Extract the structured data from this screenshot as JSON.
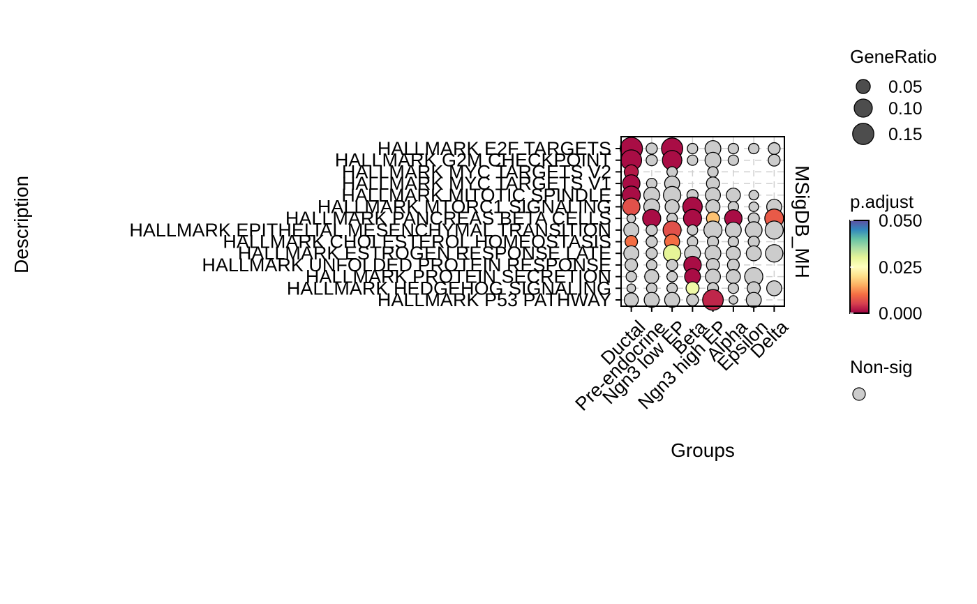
{
  "chart_data": {
    "type": "scatter",
    "subtype": "dotplot",
    "ylabel": "Description",
    "xlabel": "Groups",
    "strip_label": "MSigDB_MH",
    "x_categories": [
      "Ductal",
      "Pre-endocrine",
      "Ngn3 low EP",
      "Beta",
      "Ngn3 high EP",
      "Alpha",
      "Epsilon",
      "Delta"
    ],
    "y_categories": [
      "HALLMARK E2F TARGETS",
      "HALLMARK G2M CHECKPOINT",
      "HALLMARK MYC TARGETS V2",
      "HALLMARK MYC TARGETS V1",
      "HALLMARK MITOTIC SPINDLE",
      "HALLMARK MTORC1 SIGNALING",
      "HALLMARK PANCREAS BETA CELLS",
      "HALLMARK EPITHELIAL MESENCHYMAL TRANSITION",
      "HALLMARK CHOLESTEROL HOMEOSTASIS",
      "HALLMARK ESTROGEN RESPONSE LATE",
      "HALLMARK UNFOLDED PROTEIN RESPONSE",
      "HALLMARK PROTEIN SECRETION",
      "HALLMARK HEDGEHOG SIGNALING",
      "HALLMARK P53 PATHWAY"
    ],
    "points": [
      {
        "group": "Ductal",
        "term": "HALLMARK E2F TARGETS",
        "gene_ratio": 0.17,
        "p_adjust": 0.001,
        "sig": true
      },
      {
        "group": "Ductal",
        "term": "HALLMARK G2M CHECKPOINT",
        "gene_ratio": 0.14,
        "p_adjust": 0.001,
        "sig": true
      },
      {
        "group": "Ductal",
        "term": "HALLMARK MYC TARGETS V2",
        "gene_ratio": 0.05,
        "p_adjust": 0.002,
        "sig": true
      },
      {
        "group": "Ductal",
        "term": "HALLMARK MYC TARGETS V1",
        "gene_ratio": 0.09,
        "p_adjust": 0.001,
        "sig": true
      },
      {
        "group": "Ductal",
        "term": "HALLMARK MITOTIC SPINDLE",
        "gene_ratio": 0.1,
        "p_adjust": 0.001,
        "sig": true
      },
      {
        "group": "Ductal",
        "term": "HALLMARK MTORC1 SIGNALING",
        "gene_ratio": 0.09,
        "p_adjust": 0.007,
        "sig": true
      },
      {
        "group": "Ductal",
        "term": "HALLMARK PANCREAS BETA CELLS",
        "gene_ratio": 0.01,
        "p_adjust": null,
        "sig": false
      },
      {
        "group": "Ductal",
        "term": "HALLMARK EPITHELIAL MESENCHYMAL TRANSITION",
        "gene_ratio": 0.06,
        "p_adjust": null,
        "sig": false
      },
      {
        "group": "Ductal",
        "term": "HALLMARK CHOLESTEROL HOMEOSTASIS",
        "gene_ratio": 0.035,
        "p_adjust": 0.01,
        "sig": true
      },
      {
        "group": "Ductal",
        "term": "HALLMARK ESTROGEN RESPONSE LATE",
        "gene_ratio": 0.06,
        "p_adjust": null,
        "sig": false
      },
      {
        "group": "Ductal",
        "term": "HALLMARK UNFOLDED PROTEIN RESPONSE",
        "gene_ratio": 0.035,
        "p_adjust": null,
        "sig": false
      },
      {
        "group": "Ductal",
        "term": "HALLMARK PROTEIN SECRETION",
        "gene_ratio": 0.02,
        "p_adjust": null,
        "sig": false
      },
      {
        "group": "Ductal",
        "term": "HALLMARK HEDGEHOG SIGNALING",
        "gene_ratio": 0.01,
        "p_adjust": null,
        "sig": false
      },
      {
        "group": "Ductal",
        "term": "HALLMARK P53 PATHWAY",
        "gene_ratio": 0.05,
        "p_adjust": null,
        "sig": false
      },
      {
        "group": "Pre-endocrine",
        "term": "HALLMARK E2F TARGETS",
        "gene_ratio": 0.025,
        "p_adjust": null,
        "sig": false
      },
      {
        "group": "Pre-endocrine",
        "term": "HALLMARK G2M CHECKPOINT",
        "gene_ratio": 0.025,
        "p_adjust": null,
        "sig": false
      },
      {
        "group": "Pre-endocrine",
        "term": "HALLMARK MYC TARGETS V1",
        "gene_ratio": 0.02,
        "p_adjust": null,
        "sig": false
      },
      {
        "group": "Pre-endocrine",
        "term": "HALLMARK MITOTIC SPINDLE",
        "gene_ratio": 0.07,
        "p_adjust": null,
        "sig": false
      },
      {
        "group": "Pre-endocrine",
        "term": "HALLMARK MTORC1 SIGNALING",
        "gene_ratio": 0.07,
        "p_adjust": null,
        "sig": false
      },
      {
        "group": "Pre-endocrine",
        "term": "HALLMARK PANCREAS BETA CELLS",
        "gene_ratio": 0.1,
        "p_adjust": 0.001,
        "sig": true
      },
      {
        "group": "Pre-endocrine",
        "term": "HALLMARK EPITHELIAL MESENCHYMAL TRANSITION",
        "gene_ratio": 0.025,
        "p_adjust": null,
        "sig": false
      },
      {
        "group": "Pre-endocrine",
        "term": "HALLMARK CHOLESTEROL HOMEOSTASIS",
        "gene_ratio": 0.025,
        "p_adjust": null,
        "sig": false
      },
      {
        "group": "Pre-endocrine",
        "term": "HALLMARK ESTROGEN RESPONSE LATE",
        "gene_ratio": 0.025,
        "p_adjust": null,
        "sig": false
      },
      {
        "group": "Pre-endocrine",
        "term": "HALLMARK UNFOLDED PROTEIN RESPONSE",
        "gene_ratio": 0.02,
        "p_adjust": null,
        "sig": false
      },
      {
        "group": "Pre-endocrine",
        "term": "HALLMARK PROTEIN SECRETION",
        "gene_ratio": 0.05,
        "p_adjust": null,
        "sig": false
      },
      {
        "group": "Pre-endocrine",
        "term": "HALLMARK HEDGEHOG SIGNALING",
        "gene_ratio": 0.02,
        "p_adjust": null,
        "sig": false
      },
      {
        "group": "Pre-endocrine",
        "term": "HALLMARK P53 PATHWAY",
        "gene_ratio": 0.06,
        "p_adjust": null,
        "sig": false
      },
      {
        "group": "Ngn3 low EP",
        "term": "HALLMARK E2F TARGETS",
        "gene_ratio": 0.15,
        "p_adjust": 0.001,
        "sig": true
      },
      {
        "group": "Ngn3 low EP",
        "term": "HALLMARK G2M CHECKPOINT",
        "gene_ratio": 0.12,
        "p_adjust": 0.001,
        "sig": true
      },
      {
        "group": "Ngn3 low EP",
        "term": "HALLMARK MYC TARGETS V2",
        "gene_ratio": 0.02,
        "p_adjust": null,
        "sig": false
      },
      {
        "group": "Ngn3 low EP",
        "term": "HALLMARK MYC TARGETS V1",
        "gene_ratio": 0.06,
        "p_adjust": null,
        "sig": false
      },
      {
        "group": "Ngn3 low EP",
        "term": "HALLMARK MITOTIC SPINDLE",
        "gene_ratio": 0.09,
        "p_adjust": null,
        "sig": false
      },
      {
        "group": "Ngn3 low EP",
        "term": "HALLMARK MTORC1 SIGNALING",
        "gene_ratio": 0.05,
        "p_adjust": null,
        "sig": false
      },
      {
        "group": "Ngn3 low EP",
        "term": "HALLMARK PANCREAS BETA CELLS",
        "gene_ratio": 0.02,
        "p_adjust": null,
        "sig": false
      },
      {
        "group": "Ngn3 low EP",
        "term": "HALLMARK EPITHELIAL MESENCHYMAL TRANSITION",
        "gene_ratio": 0.1,
        "p_adjust": 0.007,
        "sig": true
      },
      {
        "group": "Ngn3 low EP",
        "term": "HALLMARK CHOLESTEROL HOMEOSTASIS",
        "gene_ratio": 0.06,
        "p_adjust": 0.01,
        "sig": true
      },
      {
        "group": "Ngn3 low EP",
        "term": "HALLMARK ESTROGEN RESPONSE LATE",
        "gene_ratio": 0.09,
        "p_adjust": 0.03,
        "sig": true
      },
      {
        "group": "Ngn3 low EP",
        "term": "HALLMARK UNFOLDED PROTEIN RESPONSE",
        "gene_ratio": 0.025,
        "p_adjust": null,
        "sig": false
      },
      {
        "group": "Ngn3 low EP",
        "term": "HALLMARK PROTEIN SECRETION",
        "gene_ratio": 0.02,
        "p_adjust": null,
        "sig": false
      },
      {
        "group": "Ngn3 low EP",
        "term": "HALLMARK HEDGEHOG SIGNALING",
        "gene_ratio": 0.02,
        "p_adjust": null,
        "sig": false
      },
      {
        "group": "Ngn3 low EP",
        "term": "HALLMARK P53 PATHWAY",
        "gene_ratio": 0.06,
        "p_adjust": null,
        "sig": false
      },
      {
        "group": "Beta",
        "term": "HALLMARK E2F TARGETS",
        "gene_ratio": 0.02,
        "p_adjust": null,
        "sig": false
      },
      {
        "group": "Beta",
        "term": "HALLMARK G2M CHECKPOINT",
        "gene_ratio": 0.02,
        "p_adjust": null,
        "sig": false
      },
      {
        "group": "Beta",
        "term": "HALLMARK MITOTIC SPINDLE",
        "gene_ratio": 0.025,
        "p_adjust": null,
        "sig": false
      },
      {
        "group": "Beta",
        "term": "HALLMARK MTORC1 SIGNALING",
        "gene_ratio": 0.12,
        "p_adjust": 0.001,
        "sig": true
      },
      {
        "group": "Beta",
        "term": "HALLMARK PANCREAS BETA CELLS",
        "gene_ratio": 0.1,
        "p_adjust": 0.001,
        "sig": true
      },
      {
        "group": "Beta",
        "term": "HALLMARK EPITHELIAL MESENCHYMAL TRANSITION",
        "gene_ratio": 0.02,
        "p_adjust": null,
        "sig": false
      },
      {
        "group": "Beta",
        "term": "HALLMARK CHOLESTEROL HOMEOSTASIS",
        "gene_ratio": 0.02,
        "p_adjust": null,
        "sig": false
      },
      {
        "group": "Beta",
        "term": "HALLMARK ESTROGEN RESPONSE LATE",
        "gene_ratio": 0.07,
        "p_adjust": null,
        "sig": false
      },
      {
        "group": "Beta",
        "term": "HALLMARK UNFOLDED PROTEIN RESPONSE",
        "gene_ratio": 0.09,
        "p_adjust": 0.001,
        "sig": true
      },
      {
        "group": "Beta",
        "term": "HALLMARK PROTEIN SECRETION",
        "gene_ratio": 0.07,
        "p_adjust": 0.001,
        "sig": true
      },
      {
        "group": "Beta",
        "term": "HALLMARK HEDGEHOG SIGNALING",
        "gene_ratio": 0.04,
        "p_adjust": 0.028,
        "sig": true
      },
      {
        "group": "Beta",
        "term": "HALLMARK P53 PATHWAY",
        "gene_ratio": 0.03,
        "p_adjust": null,
        "sig": false
      },
      {
        "group": "Ngn3 high EP",
        "term": "HALLMARK E2F TARGETS",
        "gene_ratio": 0.07,
        "p_adjust": null,
        "sig": false
      },
      {
        "group": "Ngn3 high EP",
        "term": "HALLMARK G2M CHECKPOINT",
        "gene_ratio": 0.07,
        "p_adjust": null,
        "sig": false
      },
      {
        "group": "Ngn3 high EP",
        "term": "HALLMARK MYC TARGETS V2",
        "gene_ratio": 0.02,
        "p_adjust": null,
        "sig": false
      },
      {
        "group": "Ngn3 high EP",
        "term": "HALLMARK MYC TARGETS V1",
        "gene_ratio": 0.04,
        "p_adjust": null,
        "sig": false
      },
      {
        "group": "Ngn3 high EP",
        "term": "HALLMARK MITOTIC SPINDLE",
        "gene_ratio": 0.06,
        "p_adjust": null,
        "sig": false
      },
      {
        "group": "Ngn3 high EP",
        "term": "HALLMARK MTORC1 SIGNALING",
        "gene_ratio": 0.05,
        "p_adjust": null,
        "sig": false
      },
      {
        "group": "Ngn3 high EP",
        "term": "HALLMARK PANCREAS BETA CELLS",
        "gene_ratio": 0.04,
        "p_adjust": 0.017,
        "sig": true
      },
      {
        "group": "Ngn3 high EP",
        "term": "HALLMARK EPITHELIAL MESENCHYMAL TRANSITION",
        "gene_ratio": 0.1,
        "p_adjust": null,
        "sig": false
      },
      {
        "group": "Ngn3 high EP",
        "term": "HALLMARK CHOLESTEROL HOMEOSTASIS",
        "gene_ratio": 0.025,
        "p_adjust": null,
        "sig": false
      },
      {
        "group": "Ngn3 high EP",
        "term": "HALLMARK ESTROGEN RESPONSE LATE",
        "gene_ratio": 0.07,
        "p_adjust": null,
        "sig": false
      },
      {
        "group": "Ngn3 high EP",
        "term": "HALLMARK UNFOLDED PROTEIN RESPONSE",
        "gene_ratio": 0.04,
        "p_adjust": null,
        "sig": false
      },
      {
        "group": "Ngn3 high EP",
        "term": "HALLMARK PROTEIN SECRETION",
        "gene_ratio": 0.06,
        "p_adjust": null,
        "sig": false
      },
      {
        "group": "Ngn3 high EP",
        "term": "HALLMARK HEDGEHOG SIGNALING",
        "gene_ratio": 0.025,
        "p_adjust": null,
        "sig": false
      },
      {
        "group": "Ngn3 high EP",
        "term": "HALLMARK P53 PATHWAY",
        "gene_ratio": 0.14,
        "p_adjust": 0.003,
        "sig": true
      },
      {
        "group": "Alpha",
        "term": "HALLMARK E2F TARGETS",
        "gene_ratio": 0.02,
        "p_adjust": null,
        "sig": false
      },
      {
        "group": "Alpha",
        "term": "HALLMARK G2M CHECKPOINT",
        "gene_ratio": 0.02,
        "p_adjust": null,
        "sig": false
      },
      {
        "group": "Alpha",
        "term": "HALLMARK MITOTIC SPINDLE",
        "gene_ratio": 0.05,
        "p_adjust": null,
        "sig": false
      },
      {
        "group": "Alpha",
        "term": "HALLMARK MTORC1 SIGNALING",
        "gene_ratio": 0.02,
        "p_adjust": null,
        "sig": false
      },
      {
        "group": "Alpha",
        "term": "HALLMARK PANCREAS BETA CELLS",
        "gene_ratio": 0.09,
        "p_adjust": 0.001,
        "sig": true
      },
      {
        "group": "Alpha",
        "term": "HALLMARK EPITHELIAL MESENCHYMAL TRANSITION",
        "gene_ratio": 0.07,
        "p_adjust": null,
        "sig": false
      },
      {
        "group": "Alpha",
        "term": "HALLMARK CHOLESTEROL HOMEOSTASIS",
        "gene_ratio": 0.02,
        "p_adjust": null,
        "sig": false
      },
      {
        "group": "Alpha",
        "term": "HALLMARK ESTROGEN RESPONSE LATE",
        "gene_ratio": 0.05,
        "p_adjust": null,
        "sig": false
      },
      {
        "group": "Alpha",
        "term": "HALLMARK UNFOLDED PROTEIN RESPONSE",
        "gene_ratio": 0.03,
        "p_adjust": null,
        "sig": false
      },
      {
        "group": "Alpha",
        "term": "HALLMARK PROTEIN SECRETION",
        "gene_ratio": 0.05,
        "p_adjust": null,
        "sig": false
      },
      {
        "group": "Alpha",
        "term": "HALLMARK HEDGEHOG SIGNALING",
        "gene_ratio": 0.02,
        "p_adjust": null,
        "sig": false
      },
      {
        "group": "Alpha",
        "term": "HALLMARK P53 PATHWAY",
        "gene_ratio": 0.01,
        "p_adjust": null,
        "sig": false
      },
      {
        "group": "Epsilon",
        "term": "HALLMARK E2F TARGETS",
        "gene_ratio": 0.02,
        "p_adjust": null,
        "sig": false
      },
      {
        "group": "Epsilon",
        "term": "HALLMARK MITOTIC SPINDLE",
        "gene_ratio": 0.015,
        "p_adjust": null,
        "sig": false
      },
      {
        "group": "Epsilon",
        "term": "HALLMARK MTORC1 SIGNALING",
        "gene_ratio": 0.015,
        "p_adjust": null,
        "sig": false
      },
      {
        "group": "Epsilon",
        "term": "HALLMARK PANCREAS BETA CELLS",
        "gene_ratio": 0.025,
        "p_adjust": null,
        "sig": false
      },
      {
        "group": "Epsilon",
        "term": "HALLMARK EPITHELIAL MESENCHYMAL TRANSITION",
        "gene_ratio": 0.08,
        "p_adjust": null,
        "sig": false
      },
      {
        "group": "Epsilon",
        "term": "HALLMARK CHOLESTEROL HOMEOSTASIS",
        "gene_ratio": 0.025,
        "p_adjust": null,
        "sig": false
      },
      {
        "group": "Epsilon",
        "term": "HALLMARK ESTROGEN RESPONSE LATE",
        "gene_ratio": 0.06,
        "p_adjust": null,
        "sig": false
      },
      {
        "group": "Epsilon",
        "term": "HALLMARK PROTEIN SECRETION",
        "gene_ratio": 0.1,
        "p_adjust": null,
        "sig": false
      },
      {
        "group": "Epsilon",
        "term": "HALLMARK HEDGEHOG SIGNALING",
        "gene_ratio": 0.04,
        "p_adjust": null,
        "sig": false
      },
      {
        "group": "Epsilon",
        "term": "HALLMARK P53 PATHWAY",
        "gene_ratio": 0.06,
        "p_adjust": null,
        "sig": false
      },
      {
        "group": "Delta",
        "term": "HALLMARK E2F TARGETS",
        "gene_ratio": 0.03,
        "p_adjust": null,
        "sig": false
      },
      {
        "group": "Delta",
        "term": "HALLMARK G2M CHECKPOINT",
        "gene_ratio": 0.03,
        "p_adjust": null,
        "sig": false
      },
      {
        "group": "Delta",
        "term": "HALLMARK MTORC1 SIGNALING",
        "gene_ratio": 0.06,
        "p_adjust": null,
        "sig": false
      },
      {
        "group": "Delta",
        "term": "HALLMARK PANCREAS BETA CELLS",
        "gene_ratio": 0.11,
        "p_adjust": 0.008,
        "sig": true
      },
      {
        "group": "Delta",
        "term": "HALLMARK EPITHELIAL MESENCHYMAL TRANSITION",
        "gene_ratio": 0.1,
        "p_adjust": null,
        "sig": false
      },
      {
        "group": "Delta",
        "term": "HALLMARK ESTROGEN RESPONSE LATE",
        "gene_ratio": 0.09,
        "p_adjust": null,
        "sig": false
      },
      {
        "group": "Delta",
        "term": "HALLMARK HEDGEHOG SIGNALING",
        "gene_ratio": 0.06,
        "p_adjust": null,
        "sig": false
      }
    ],
    "size_legend": {
      "title": "GeneRatio",
      "breaks": [
        0.05,
        0.1,
        0.15
      ],
      "labels": [
        "0.05",
        "0.10",
        "0.15"
      ]
    },
    "color_legend": {
      "title": "p.adjust",
      "range": [
        0.0,
        0.05
      ],
      "labels": [
        "0.050",
        "0.025",
        "0.000"
      ],
      "palette": [
        "#9e0142",
        "#d53e4f",
        "#f46d43",
        "#fdae61",
        "#fee08b",
        "#ffffbf",
        "#e6f598",
        "#abdda4",
        "#66c2a5",
        "#3288bd",
        "#5e4fa2"
      ]
    },
    "nonsig_legend": {
      "title": "Non-sig",
      "color": "#cccccc"
    },
    "grid": true,
    "grid_style": "dashed",
    "legend_position": "right"
  }
}
